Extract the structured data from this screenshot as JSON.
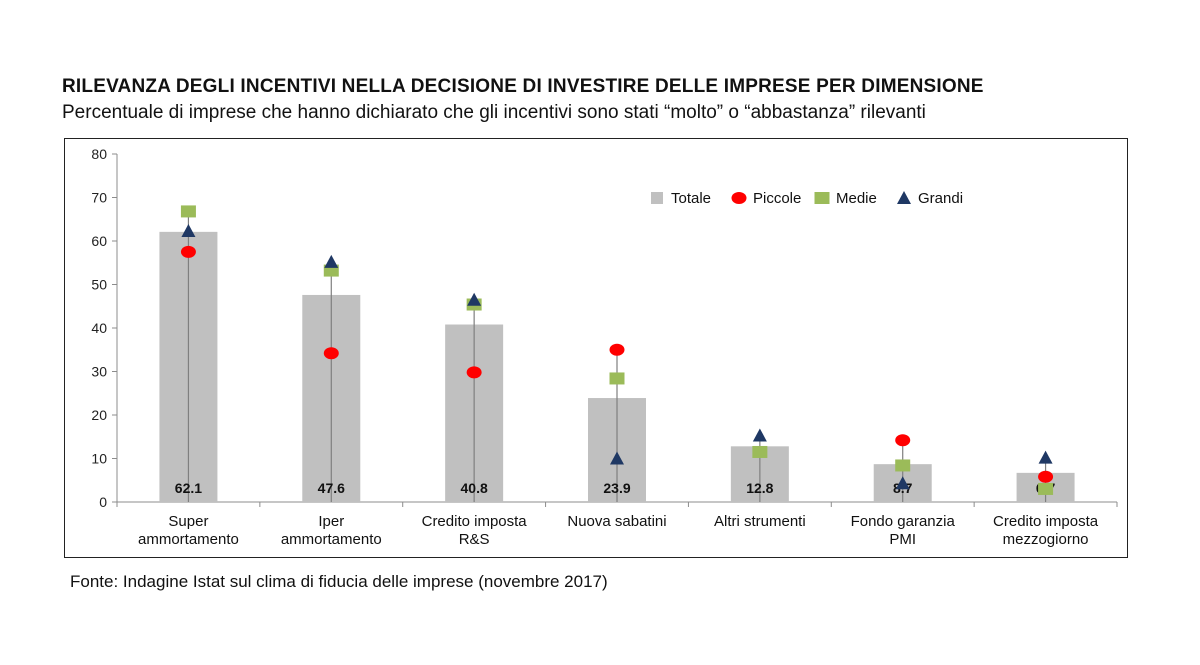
{
  "title": "RILEVANZA DEGLI INCENTIVI NELLA DECISIONE DI INVESTIRE DELLE IMPRESE PER DIMENSIONE",
  "subtitle": "Percentuale di imprese che hanno dichiarato che gli incentivi sono stati “molto” o “abbastanza” rilevanti",
  "source": "Fonte: Indagine Istat sul clima di fiducia delle imprese (novembre 2017)",
  "colors": {
    "totale": "#c0c0c0",
    "piccole": "#ff0000",
    "medie": "#9bbb59",
    "grandi": "#1f3864",
    "stem": "#7f7f7f"
  },
  "chart_data": {
    "type": "bar",
    "categories": [
      [
        "Super",
        "ammortamento"
      ],
      [
        "Iper",
        "ammortamento"
      ],
      [
        "Credito imposta",
        "R&S"
      ],
      [
        "Nuova sabatini"
      ],
      [
        "Altri strumenti"
      ],
      [
        "Fondo garanzia",
        "PMI"
      ],
      [
        "Credito imposta",
        "mezzogiorno"
      ]
    ],
    "ylim": [
      0,
      80
    ],
    "yticks": [
      0,
      10,
      20,
      30,
      40,
      50,
      60,
      70,
      80
    ],
    "series": [
      {
        "name": "Totale",
        "mark": "bar",
        "values": [
          62.1,
          47.6,
          40.8,
          23.9,
          12.8,
          8.7,
          6.7
        ],
        "labels": [
          "62.1",
          "47.6",
          "40.8",
          "23.9",
          "12.8",
          "8.7",
          "6.7"
        ]
      },
      {
        "name": "Piccole",
        "mark": "circle",
        "values": [
          57.5,
          34.2,
          29.8,
          35.0,
          null,
          14.2,
          5.8
        ]
      },
      {
        "name": "Medie",
        "mark": "square",
        "values": [
          66.8,
          53.2,
          45.4,
          28.4,
          11.5,
          8.4,
          3.0
        ]
      },
      {
        "name": "Grandi",
        "mark": "triangle",
        "values": [
          62.3,
          55.2,
          46.5,
          10.0,
          15.3,
          4.3,
          10.2
        ]
      }
    ],
    "legend_position": "top-right",
    "grid": false
  }
}
